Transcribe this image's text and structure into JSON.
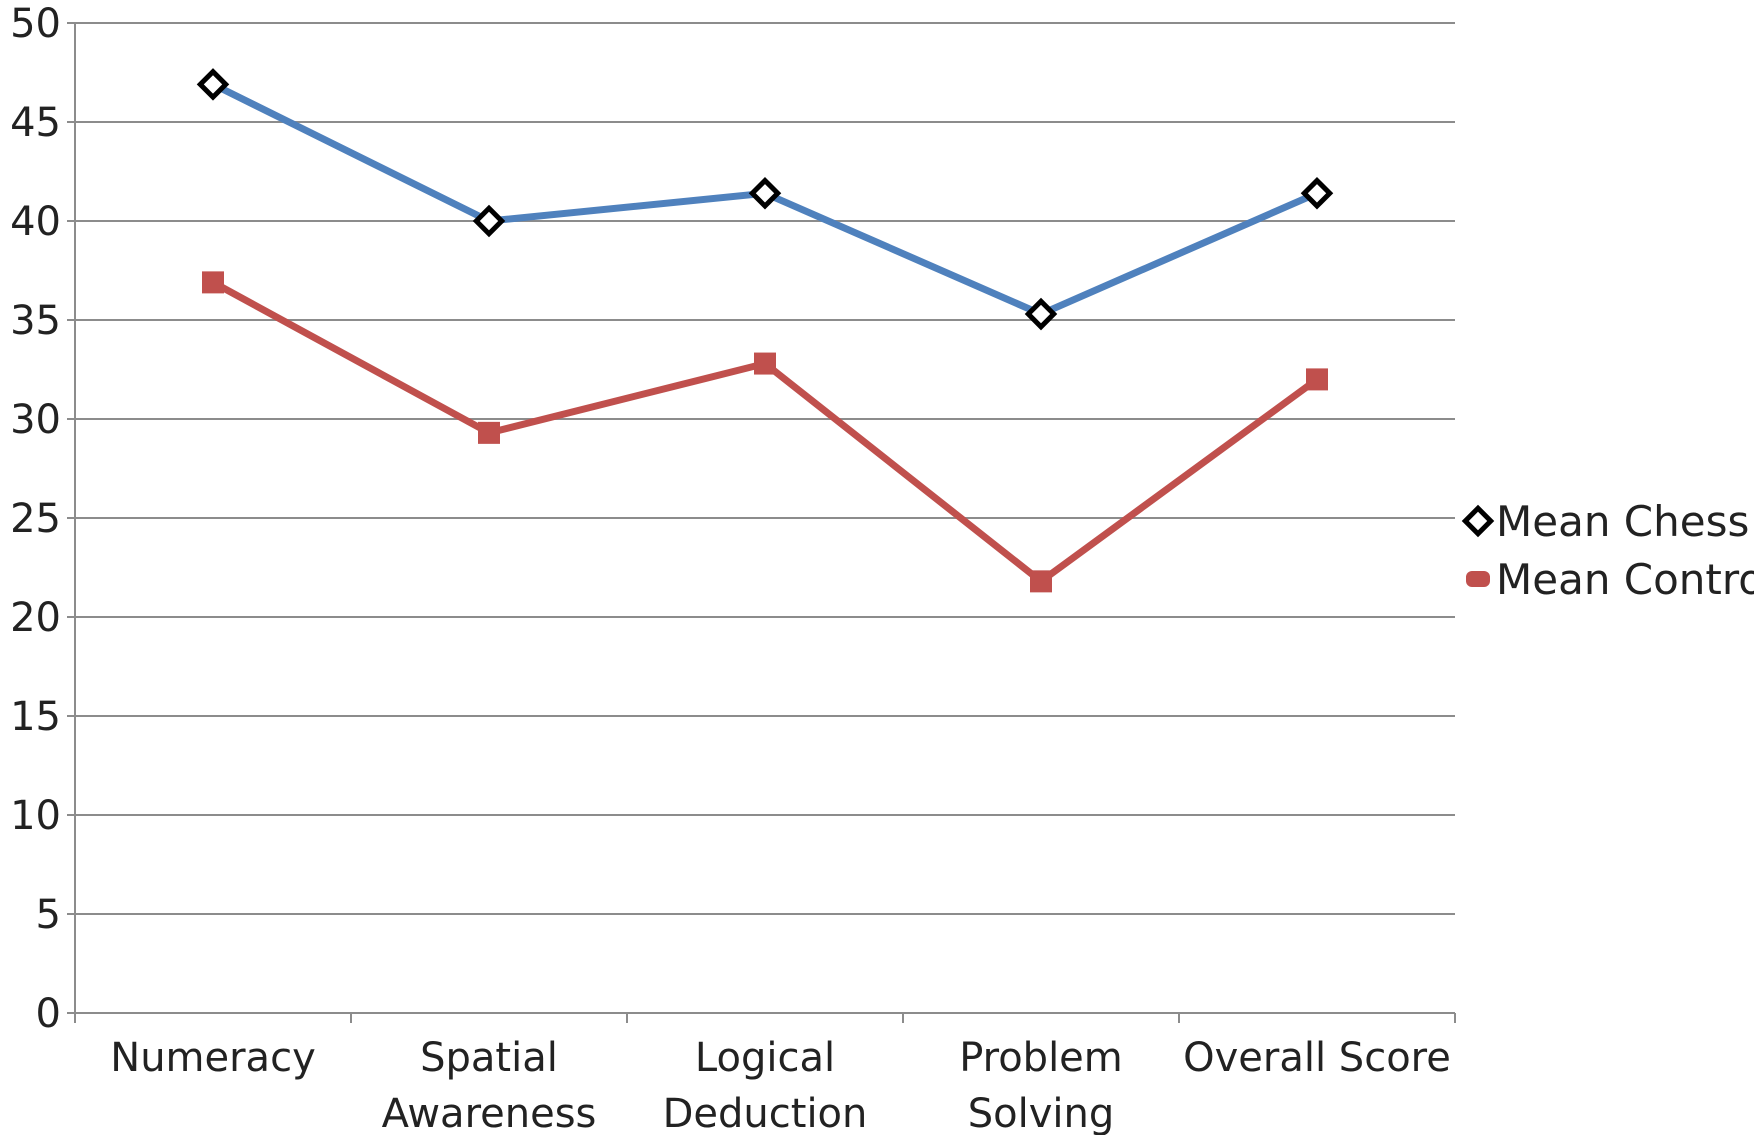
{
  "chart_data": {
    "type": "line",
    "title": "",
    "xlabel": "",
    "ylabel": "",
    "categories": [
      [
        "Numeracy"
      ],
      [
        "Spatial",
        "Awareness"
      ],
      [
        "Logical",
        "Deduction"
      ],
      [
        "Problem",
        "Solving"
      ],
      [
        "Overall Score"
      ]
    ],
    "series": [
      {
        "name": "Mean Chess",
        "values": [
          46.9,
          40.0,
          41.4,
          35.3,
          41.4
        ],
        "color": "#4f81bd",
        "marker": "diamond"
      },
      {
        "name": "Mean Control",
        "values": [
          36.9,
          29.3,
          32.8,
          21.8,
          32.0
        ],
        "color": "#c0504d",
        "marker": "square"
      }
    ],
    "ylim": [
      0,
      50
    ],
    "yticks": [
      0,
      5,
      10,
      15,
      20,
      25,
      30,
      35,
      40,
      45,
      50
    ],
    "grid": true,
    "legend": "right"
  }
}
